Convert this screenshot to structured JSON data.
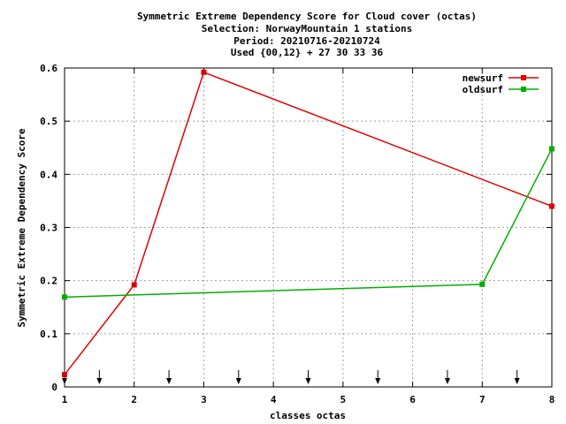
{
  "chart_data": {
    "type": "line",
    "title_lines": [
      "Symmetric Extreme Dependency Score  for Cloud cover (octas)",
      "Selection: NorwayMountain      1 stations",
      "Period: 20210716-20210724",
      "Used {00,12} + 27 30 33 36"
    ],
    "xlabel": "classes octas",
    "ylabel": "Symmetric Extreme Dependency Score",
    "xlim": [
      1,
      8
    ],
    "ylim": [
      0,
      0.6
    ],
    "x_ticks": [
      "1",
      "2",
      "3",
      "4",
      "5",
      "6",
      "7",
      "8"
    ],
    "y_ticks": [
      "0",
      "0.1",
      "0.2",
      "0.3",
      "0.4",
      "0.5",
      "0.6"
    ],
    "grid": true,
    "legend_position": "top-right",
    "series": [
      {
        "name": "newsurf",
        "color": "#e00000",
        "x": [
          1,
          2,
          3,
          8
        ],
        "y": [
          0.023,
          0.192,
          0.592,
          0.34
        ]
      },
      {
        "name": "oldsurf",
        "color": "#00b000",
        "x": [
          1,
          7,
          8
        ],
        "y": [
          0.169,
          0.193,
          0.448
        ]
      }
    ],
    "arrow_markers_x": [
      1,
      1.5,
      2.5,
      3.5,
      4.5,
      5.5,
      6.5,
      7.5
    ]
  }
}
